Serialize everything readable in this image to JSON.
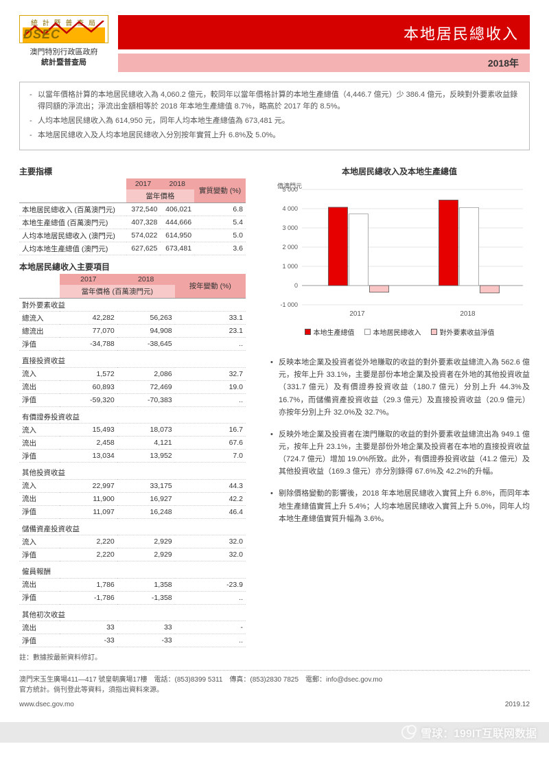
{
  "header": {
    "logo_top": "統 計 暨 普 查 局",
    "logo_text": "DSEC",
    "logo_sub1": "澳門特別行政區政府",
    "logo_sub2": "統計暨普查局",
    "title": "本地居民總收入",
    "year": "2018年"
  },
  "highlights": [
    "以當年價格計算的本地居民總收入為 4,060.2 億元，較同年以當年價格計算的本地生產總值（4,446.7 億元）少 386.4 億元，反映對外要素收益錄得同額的淨流出；淨流出金額相等於 2018 年本地生產總值 8.7%，略高於 2017 年的 8.5%。",
    "人均本地居民總收入為 614,950 元，同年人均本地生產總值為 673,481 元。",
    "本地居民總收入及人均本地居民總收入分別按年實質上升 6.8%及 5.0%。"
  ],
  "table1": {
    "title": "主要指標",
    "col_2017": "2017",
    "col_2018": "2018",
    "col_sub": "當年價格",
    "col_change": "實質變動 (%)",
    "rows": [
      {
        "lbl": "本地居民總收入 (百萬澳門元)",
        "a": "372,540",
        "b": "406,021",
        "c": "6.8"
      },
      {
        "lbl": "本地生產總值 (百萬澳門元)",
        "a": "407,328",
        "b": "444,666",
        "c": "5.4"
      },
      {
        "lbl": "人均本地居民總收入 (澳門元)",
        "a": "574,022",
        "b": "614,950",
        "c": "5.0"
      },
      {
        "lbl": "人均本地生產總值 (澳門元)",
        "a": "627,625",
        "b": "673,481",
        "c": "3.6"
      }
    ]
  },
  "table2": {
    "title": "本地居民總收入主要項目",
    "col_2017": "2017",
    "col_2018": "2018",
    "col_sub": "當年價格 (百萬澳門元)",
    "col_change": "按年變動 (%)",
    "groups": [
      {
        "h": "對外要素收益",
        "rows": [
          {
            "lbl": "總流入",
            "a": "42,282",
            "b": "56,263",
            "c": "33.1"
          },
          {
            "lbl": "總流出",
            "a": "77,070",
            "b": "94,908",
            "c": "23.1"
          },
          {
            "lbl": "淨值",
            "a": "-34,788",
            "b": "-38,645",
            "c": ".."
          }
        ]
      },
      {
        "h": "直接投資收益",
        "rows": [
          {
            "lbl": "流入",
            "a": "1,572",
            "b": "2,086",
            "c": "32.7"
          },
          {
            "lbl": "流出",
            "a": "60,893",
            "b": "72,469",
            "c": "19.0"
          },
          {
            "lbl": "淨值",
            "a": "-59,320",
            "b": "-70,383",
            "c": ".."
          }
        ]
      },
      {
        "h": "有價證券投資收益",
        "rows": [
          {
            "lbl": "流入",
            "a": "15,493",
            "b": "18,073",
            "c": "16.7"
          },
          {
            "lbl": "流出",
            "a": "2,458",
            "b": "4,121",
            "c": "67.6"
          },
          {
            "lbl": "淨值",
            "a": "13,034",
            "b": "13,952",
            "c": "7.0"
          }
        ]
      },
      {
        "h": "其他投資收益",
        "rows": [
          {
            "lbl": "流入",
            "a": "22,997",
            "b": "33,175",
            "c": "44.3"
          },
          {
            "lbl": "流出",
            "a": "11,900",
            "b": "16,927",
            "c": "42.2"
          },
          {
            "lbl": "淨值",
            "a": "11,097",
            "b": "16,248",
            "c": "46.4"
          }
        ]
      },
      {
        "h": "儲備資產投資收益",
        "rows": [
          {
            "lbl": "流入",
            "a": "2,220",
            "b": "2,929",
            "c": "32.0"
          },
          {
            "lbl": "淨值",
            "a": "2,220",
            "b": "2,929",
            "c": "32.0"
          }
        ]
      },
      {
        "h": "僱員報酬",
        "rows": [
          {
            "lbl": "流出",
            "a": "1,786",
            "b": "1,358",
            "c": "-23.9"
          },
          {
            "lbl": "淨值",
            "a": "-1,786",
            "b": "-1,358",
            "c": ".."
          }
        ]
      },
      {
        "h": "其他初次收益",
        "rows": [
          {
            "lbl": "流出",
            "a": "33",
            "b": "33",
            "c": "-"
          },
          {
            "lbl": "淨值",
            "a": "-33",
            "b": "-33",
            "c": ".."
          }
        ]
      }
    ],
    "note": "註：數據按最新資料修訂。"
  },
  "chart": {
    "title": "本地居民總收入及本地生產總值",
    "y_label": "億澳門元",
    "y_min": -1000,
    "y_max": 5000,
    "y_step": 1000,
    "categories": [
      "2017",
      "2018"
    ],
    "series": [
      {
        "name": "本地生產總值",
        "color": "#e60000",
        "values": [
          4073,
          4447
        ]
      },
      {
        "name": "本地居民總收入",
        "color": "#ffffff",
        "border": "#999",
        "values": [
          3725,
          4060
        ]
      },
      {
        "name": "對外要素收益淨值",
        "color": "#f9c5c5",
        "values": [
          -348,
          -386
        ]
      }
    ],
    "grid_color": "#cccccc",
    "axis_color": "#999999"
  },
  "bullets": [
    "反映本地企業及投資者從外地賺取的收益的對外要素收益總流入為 562.6 億元，按年上升 33.1%，主要是部份本地企業及投資者在外地的其他投資收益（331.7 億元）及有價證券投資收益（180.7 億元）分別上升 44.3%及 16.7%，而儲備資產投資收益（29.3 億元）及直接投資收益（20.9 億元）亦按年分別上升 32.0%及 32.7%。",
    "反映外地企業及投資者在澳門賺取的收益的對外要素收益總流出為 949.1 億元，按年上升 23.1%，主要是部份外地企業及投資者在本地的直接投資收益（724.7 億元）增加 19.0%所致。此外，有價證券投資收益（41.2 億元）及其他投資收益（169.3 億元）亦分別錄得 67.6%及 42.2%的升幅。",
    "剔除價格變動的影響後，2018 年本地居民總收入實質上升 6.8%，而同年本地生產總值實質上升 5.4%；人均本地居民總收入實質上升 5.0%，同年人均本地生產總值實質升幅為 3.6%。"
  ],
  "footer": {
    "addr": "澳門宋玉生廣場411—417 號皇朝廣場17樓　電話：(853)8399 5311　傳真：(853)2830 7825　電郵：info@dsec.gov.mo",
    "note": "官方統計。倘刊登此等資料，須指出資料來源。",
    "url": "www.dsec.gov.mo",
    "date": "2019.12"
  },
  "watermark": "雪球：199IT互联网数据"
}
